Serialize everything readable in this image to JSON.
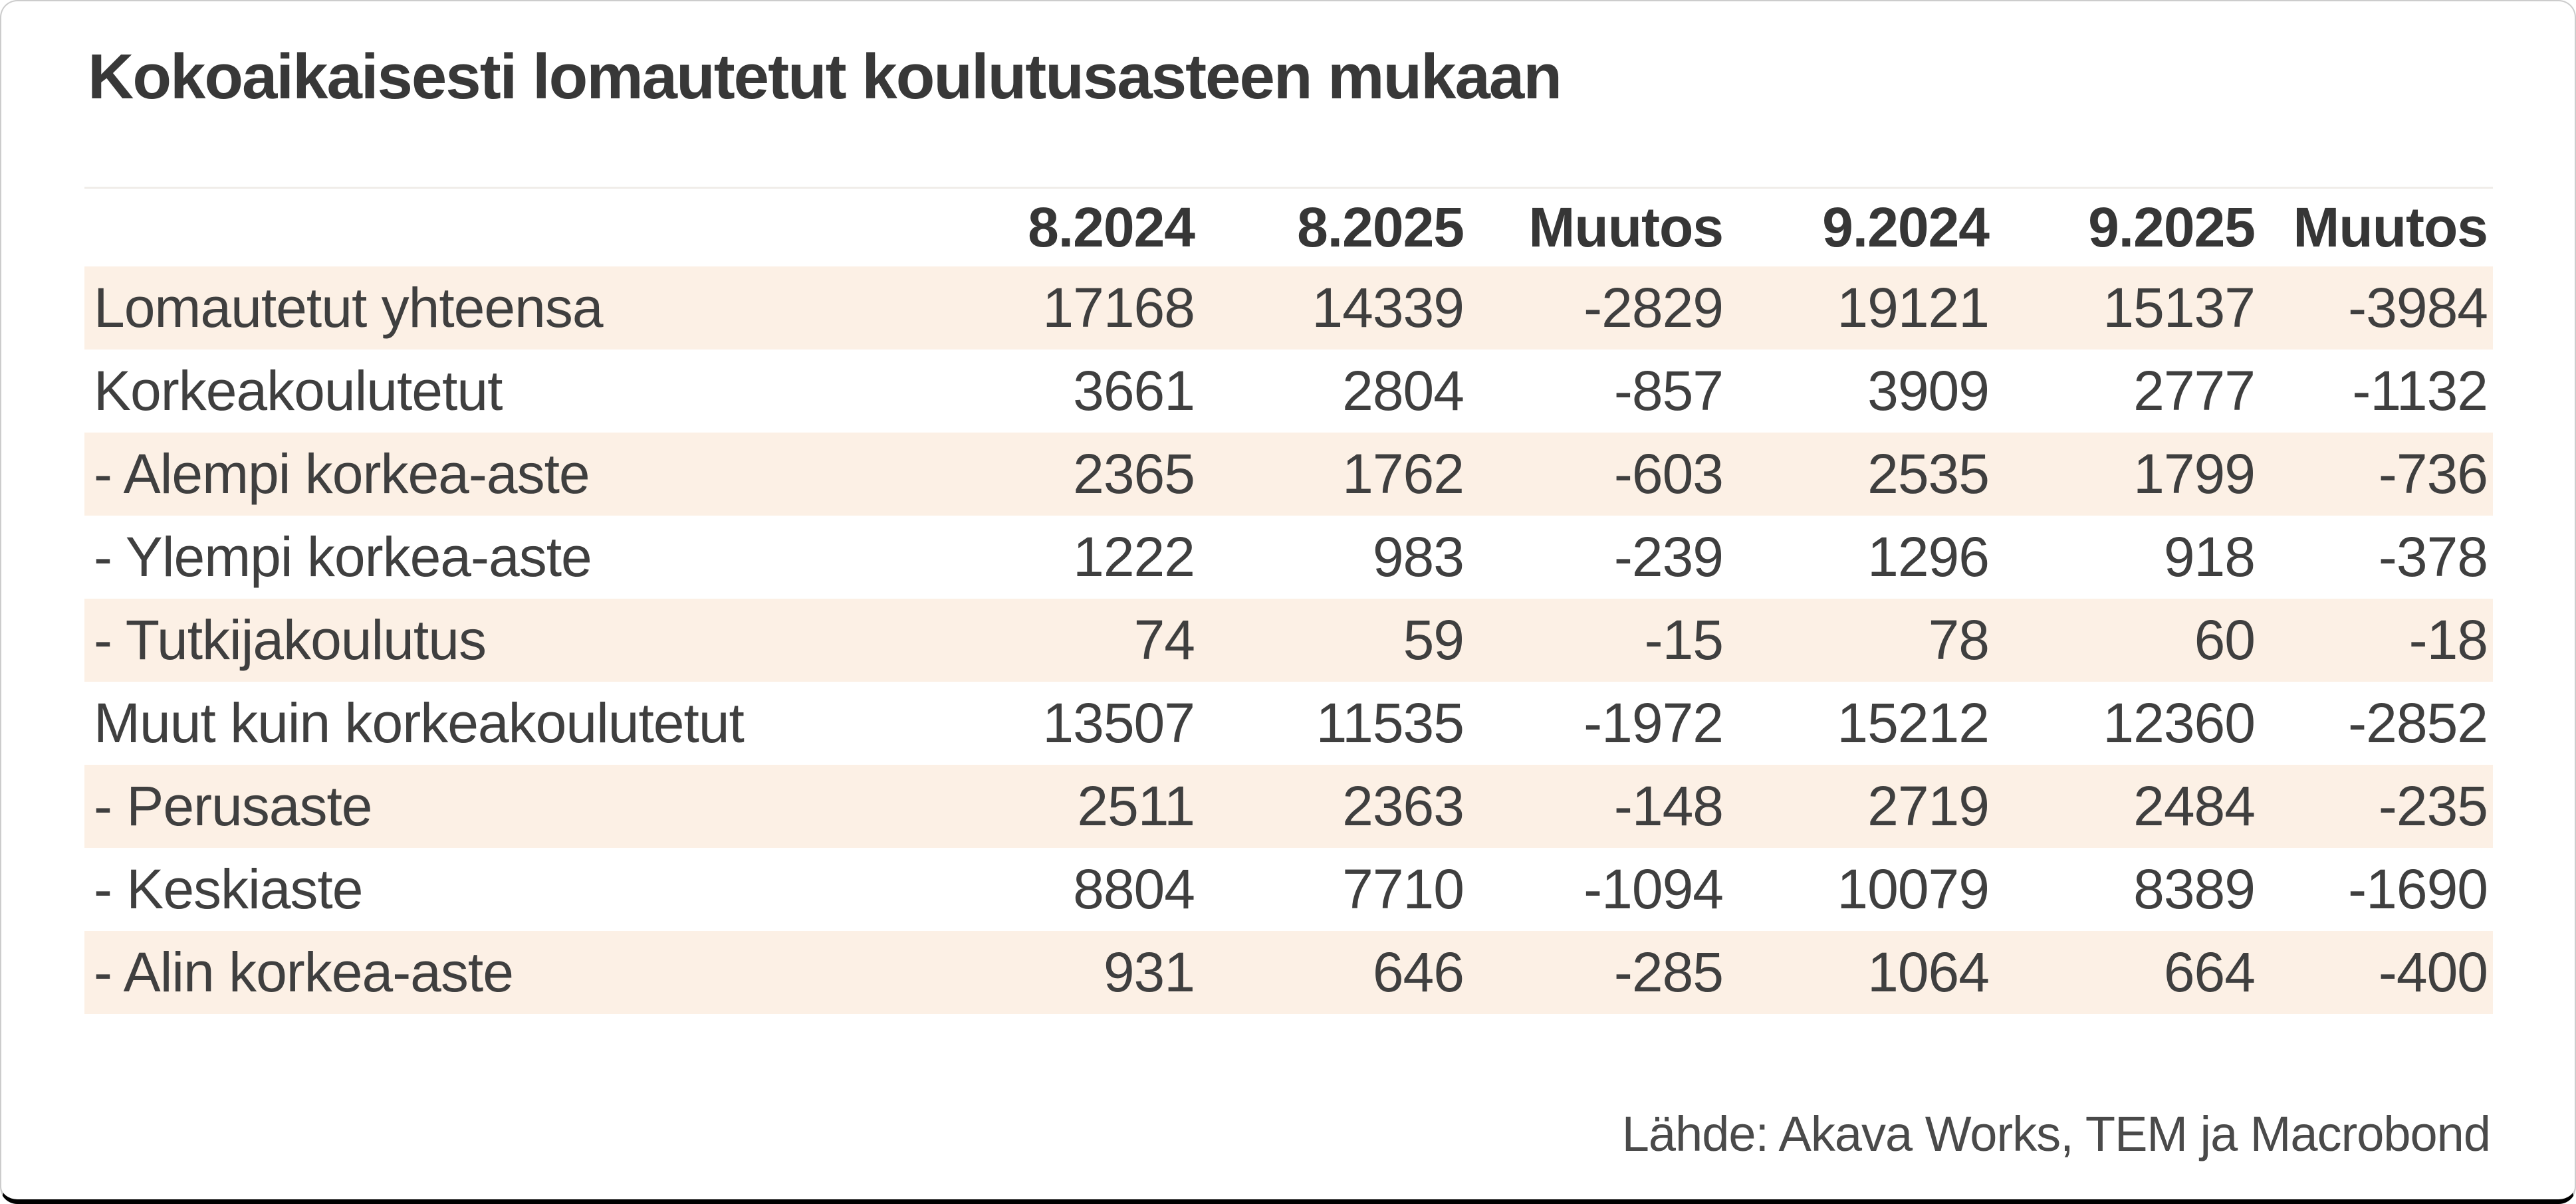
{
  "title": "Kokoaikaisesti lomautetut koulutusasteen mukaan",
  "source_note": "Lähde: Akava Works, TEM ja Macrobond",
  "colors": {
    "background": "#ffffff",
    "row_band": "#fcf0e5",
    "text": "#3f3f3f",
    "title_text": "#383838",
    "divider": "#f0ede9",
    "border_sides": "#cccccc",
    "border_bottom": "#000000"
  },
  "chart_data": {
    "type": "table",
    "title": "Kokoaikaisesti lomautetut koulutusasteen mukaan",
    "columns": [
      "",
      "8.2024",
      "8.2025",
      "Muutos",
      "9.2024",
      "9.2025",
      "Muutos"
    ],
    "rows": [
      {
        "label": "Lomautetut yhteensa",
        "values": [
          17168,
          14339,
          -2829,
          19121,
          15137,
          -3984
        ]
      },
      {
        "label": "Korkeakoulutetut",
        "values": [
          3661,
          2804,
          -857,
          3909,
          2777,
          -1132
        ]
      },
      {
        "label": "- Alempi korkea-aste",
        "values": [
          2365,
          1762,
          -603,
          2535,
          1799,
          -736
        ]
      },
      {
        "label": "- Ylempi korkea-aste",
        "values": [
          1222,
          983,
          -239,
          1296,
          918,
          -378
        ]
      },
      {
        "label": "- Tutkijakoulutus",
        "values": [
          74,
          59,
          -15,
          78,
          60,
          -18
        ]
      },
      {
        "label": "Muut kuin korkeakoulutetut",
        "values": [
          13507,
          11535,
          -1972,
          15212,
          12360,
          -2852
        ]
      },
      {
        "label": "- Perusaste",
        "values": [
          2511,
          2363,
          -148,
          2719,
          2484,
          -235
        ]
      },
      {
        "label": "- Keskiaste",
        "values": [
          8804,
          7710,
          -1094,
          10079,
          8389,
          -1690
        ]
      },
      {
        "label": "- Alin korkea-aste",
        "values": [
          931,
          646,
          -285,
          1064,
          664,
          -400
        ]
      }
    ],
    "source": "Lähde: Akava Works, TEM ja Macrobond",
    "layout": {
      "striped": true,
      "stripe_rows": "1,3,5,7,9",
      "grid": false,
      "legend_position": "none"
    }
  }
}
